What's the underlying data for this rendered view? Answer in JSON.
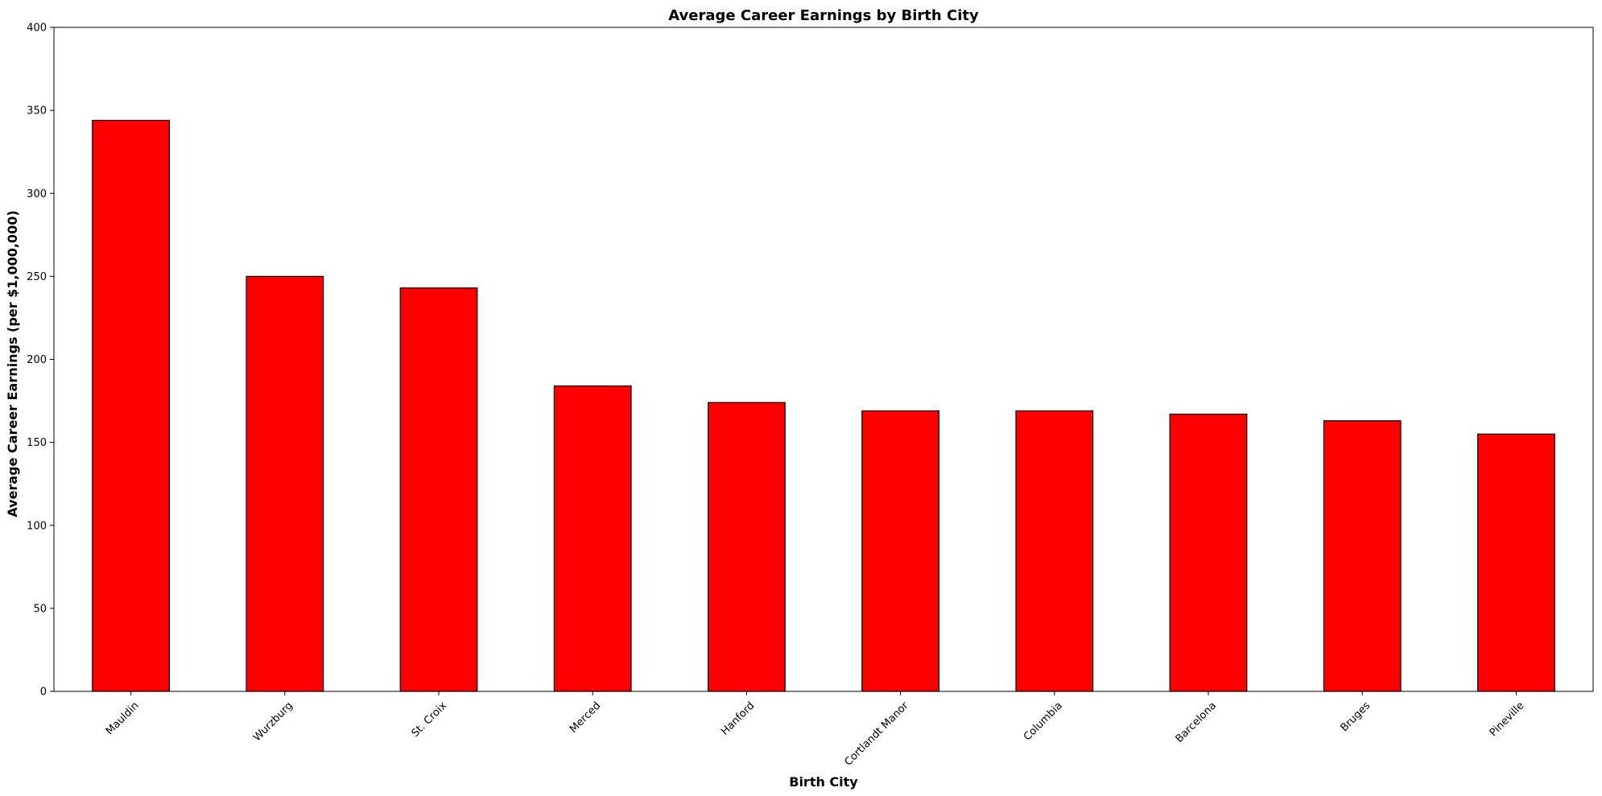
{
  "chart_data": {
    "type": "bar",
    "title": "Average Career Earnings by Birth City",
    "xlabel": "Birth City",
    "ylabel": "Average Career Earnings (per $1,000,000)",
    "categories": [
      "Mauldin",
      "Wurzburg",
      "St. Croix",
      "Merced",
      "Hanford",
      "Cortlandt Manor",
      "Columbia",
      "Barcelona",
      "Bruges",
      "Pineville"
    ],
    "values": [
      344,
      250,
      243,
      184,
      174,
      169,
      169,
      167,
      163,
      155
    ],
    "ylim": [
      0,
      400
    ],
    "yticks": [
      0,
      50,
      100,
      150,
      200,
      250,
      300,
      350,
      400
    ],
    "grid": false,
    "legend": "none",
    "bar_color": "#ff0000",
    "edge_color": "#000000"
  }
}
